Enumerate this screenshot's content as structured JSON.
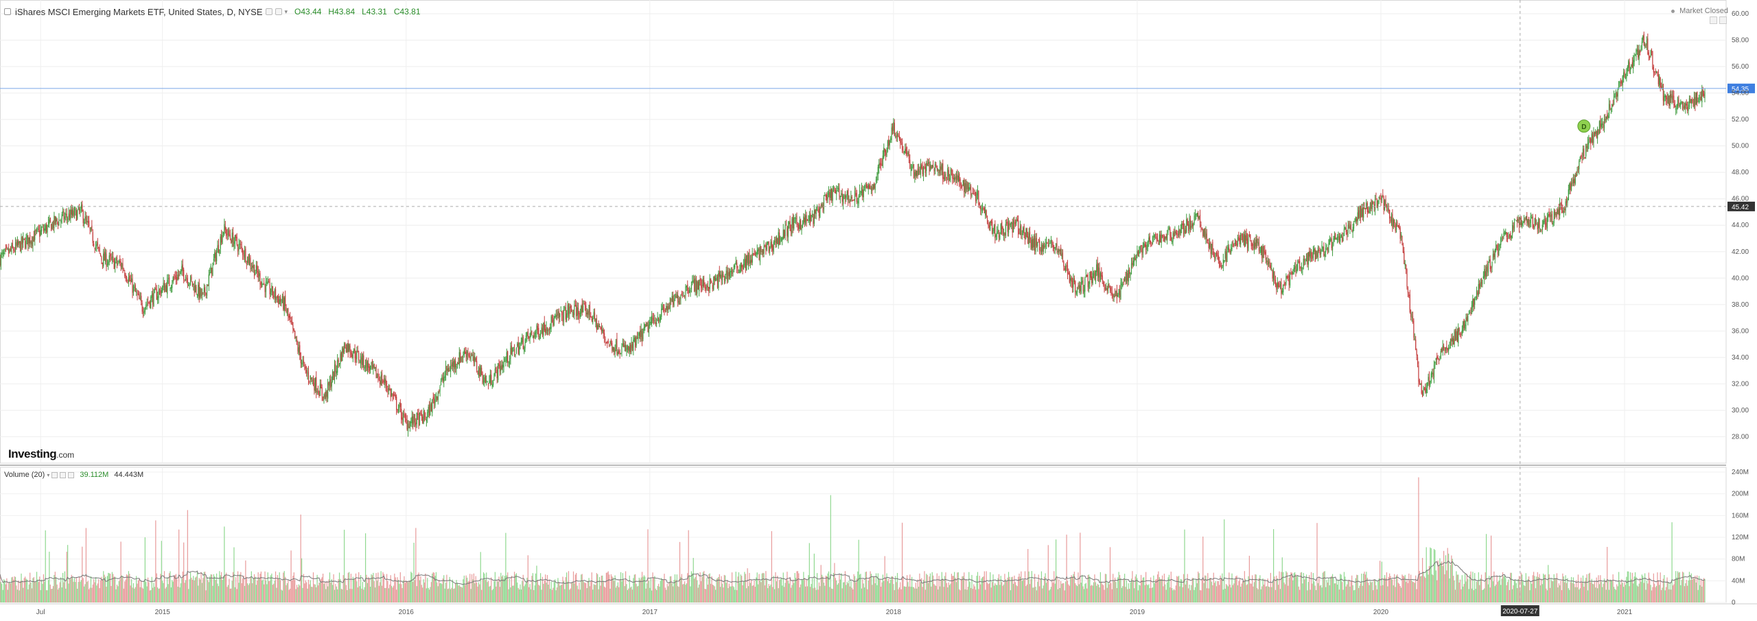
{
  "header": {
    "symbol_title": "iShares MSCI Emerging Markets ETF, United States, D, NYSE",
    "open": "O43.44",
    "high": "H43.84",
    "low": "L43.31",
    "close": "C43.81"
  },
  "status": {
    "market": "Market Closed"
  },
  "brand": {
    "name": "Investing",
    "suffix": ".com"
  },
  "volume_header": {
    "label": "Volume (20)",
    "value": "39.112M",
    "ma_value": "44.443M"
  },
  "colors": {
    "up": "#3c9a3c",
    "down": "#c33a3a",
    "vol_up": "#8fd88f",
    "vol_down": "#e89a9a",
    "price_line": "#7aa6e6",
    "price_badge": "#3f7fe0",
    "cross_badge": "#333333"
  },
  "chart_data": [
    {
      "type": "candlestick",
      "title": "",
      "x_start": "2014-05",
      "x_end": "2021-05",
      "ylim": [
        26,
        60
      ],
      "y_ticks": [
        "28.00",
        "30.00",
        "32.00",
        "34.00",
        "36.00",
        "38.00",
        "40.00",
        "42.00",
        "44.00",
        "46.00",
        "48.00",
        "50.00",
        "52.00",
        "54.00",
        "56.00",
        "58.00",
        "60.00"
      ],
      "x_tick_labels": [
        "Jul",
        "2015",
        "2016",
        "2017",
        "2018",
        "2019",
        "2020",
        "2021"
      ],
      "x_ticks": [
        "2014-07",
        "2015",
        "2016",
        "2017",
        "2018",
        "2019",
        "2020",
        "2021"
      ],
      "crosshair": {
        "date_label": "2020-07-27",
        "price_label": "45.42",
        "price": 45.42
      },
      "last_price": {
        "label": "54.35",
        "value": 54.35
      },
      "marker": {
        "label": "D",
        "date": "2020-11",
        "price": 51.5
      },
      "close_path": [
        [
          "2014-05",
          41.5
        ],
        [
          "2014-06",
          42.5
        ],
        [
          "2014-07",
          43.5
        ],
        [
          "2014-08",
          44.5
        ],
        [
          "2014-09",
          45.0
        ],
        [
          "2014-10",
          41.5
        ],
        [
          "2014-11",
          41.0
        ],
        [
          "2014-12",
          37.8
        ],
        [
          "2015-01",
          39.2
        ],
        [
          "2015-02",
          40.5
        ],
        [
          "2015-03",
          38.5
        ],
        [
          "2015-04",
          43.7
        ],
        [
          "2015-05",
          42.0
        ],
        [
          "2015-06",
          39.5
        ],
        [
          "2015-07",
          38.0
        ],
        [
          "2015-08",
          33.0
        ],
        [
          "2015-09",
          31.0
        ],
        [
          "2015-10",
          35.0
        ],
        [
          "2015-11",
          33.5
        ],
        [
          "2015-12",
          32.0
        ],
        [
          "2016-01",
          29.0
        ],
        [
          "2016-02",
          29.5
        ],
        [
          "2016-03",
          33.0
        ],
        [
          "2016-04",
          34.5
        ],
        [
          "2016-05",
          32.0
        ],
        [
          "2016-06",
          34.0
        ],
        [
          "2016-07",
          35.5
        ],
        [
          "2016-08",
          36.5
        ],
        [
          "2016-09",
          37.5
        ],
        [
          "2016-10",
          37.5
        ],
        [
          "2016-11",
          35.0
        ],
        [
          "2016-12",
          34.5
        ],
        [
          "2017-01",
          36.5
        ],
        [
          "2017-02",
          38.0
        ],
        [
          "2017-03",
          39.5
        ],
        [
          "2017-04",
          39.5
        ],
        [
          "2017-05",
          40.5
        ],
        [
          "2017-06",
          41.5
        ],
        [
          "2017-07",
          42.5
        ],
        [
          "2017-08",
          44.0
        ],
        [
          "2017-09",
          44.5
        ],
        [
          "2017-10",
          46.5
        ],
        [
          "2017-11",
          46.0
        ],
        [
          "2017-12",
          47.0
        ],
        [
          "2018-01",
          51.5
        ],
        [
          "2018-02",
          48.0
        ],
        [
          "2018-03",
          48.5
        ],
        [
          "2018-04",
          47.5
        ],
        [
          "2018-05",
          46.5
        ],
        [
          "2018-06",
          43.5
        ],
        [
          "2018-07",
          44.0
        ],
        [
          "2018-08",
          42.5
        ],
        [
          "2018-09",
          42.5
        ],
        [
          "2018-10",
          39.0
        ],
        [
          "2018-11",
          40.5
        ],
        [
          "2018-12",
          38.5
        ],
        [
          "2019-01",
          42.0
        ],
        [
          "2019-02",
          43.0
        ],
        [
          "2019-03",
          43.5
        ],
        [
          "2019-04",
          44.5
        ],
        [
          "2019-05",
          41.0
        ],
        [
          "2019-06",
          43.0
        ],
        [
          "2019-07",
          42.5
        ],
        [
          "2019-08",
          39.0
        ],
        [
          "2019-09",
          41.0
        ],
        [
          "2019-10",
          42.0
        ],
        [
          "2019-11",
          43.0
        ],
        [
          "2019-12",
          45.0
        ],
        [
          "2020-01",
          46.0
        ],
        [
          "2020-02",
          43.0
        ],
        [
          "2020-03",
          31.0
        ],
        [
          "2020-04",
          34.5
        ],
        [
          "2020-05",
          36.0
        ],
        [
          "2020-06",
          40.0
        ],
        [
          "2020-07",
          43.0
        ],
        [
          "2020-08",
          44.5
        ],
        [
          "2020-09",
          44.0
        ],
        [
          "2020-10",
          45.5
        ],
        [
          "2020-11",
          49.5
        ],
        [
          "2020-12",
          52.0
        ],
        [
          "2021-01",
          55.5
        ],
        [
          "2021-02",
          58.0
        ],
        [
          "2021-03",
          53.5
        ],
        [
          "2021-04",
          53.0
        ],
        [
          "2021-05",
          54.0
        ]
      ]
    },
    {
      "type": "bar",
      "title": "Volume (20)",
      "ylim": [
        0,
        240
      ],
      "unit": "M",
      "y_ticks": [
        "0",
        "40M",
        "80M",
        "120M",
        "160M",
        "200M",
        "240M"
      ],
      "baseline_avg_m": 40,
      "moving_average_window": 20
    }
  ]
}
